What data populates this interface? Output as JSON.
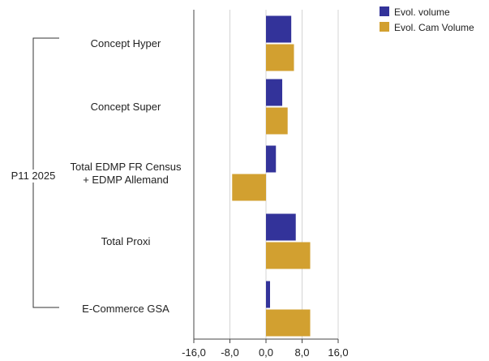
{
  "chart_data": {
    "type": "bar",
    "orientation": "horizontal",
    "group_label": "P11 2025",
    "categories": [
      [
        "Concept Hyper"
      ],
      [
        "Concept Super"
      ],
      [
        "Total EDMP FR Census",
        "+ EDMP Allemand"
      ],
      [
        "Total Proxi"
      ],
      [
        "E-Commerce GSA"
      ]
    ],
    "series": [
      {
        "name": "Evol. volume",
        "color": "#33339a",
        "values": [
          5.6,
          3.6,
          2.2,
          6.6,
          0.9
        ]
      },
      {
        "name": "Evol. Cam Volume",
        "color": "#d2a030",
        "values": [
          6.2,
          4.8,
          -7.5,
          9.8,
          9.8
        ]
      }
    ],
    "xlim": [
      -16,
      16
    ],
    "xticks": [
      -16,
      -8,
      0,
      8,
      16
    ],
    "xtick_labels": [
      "-16,0",
      "-8,0",
      "0,0",
      "8,0",
      "16,0"
    ],
    "grid": "vertical",
    "legend_position": "top-right"
  }
}
